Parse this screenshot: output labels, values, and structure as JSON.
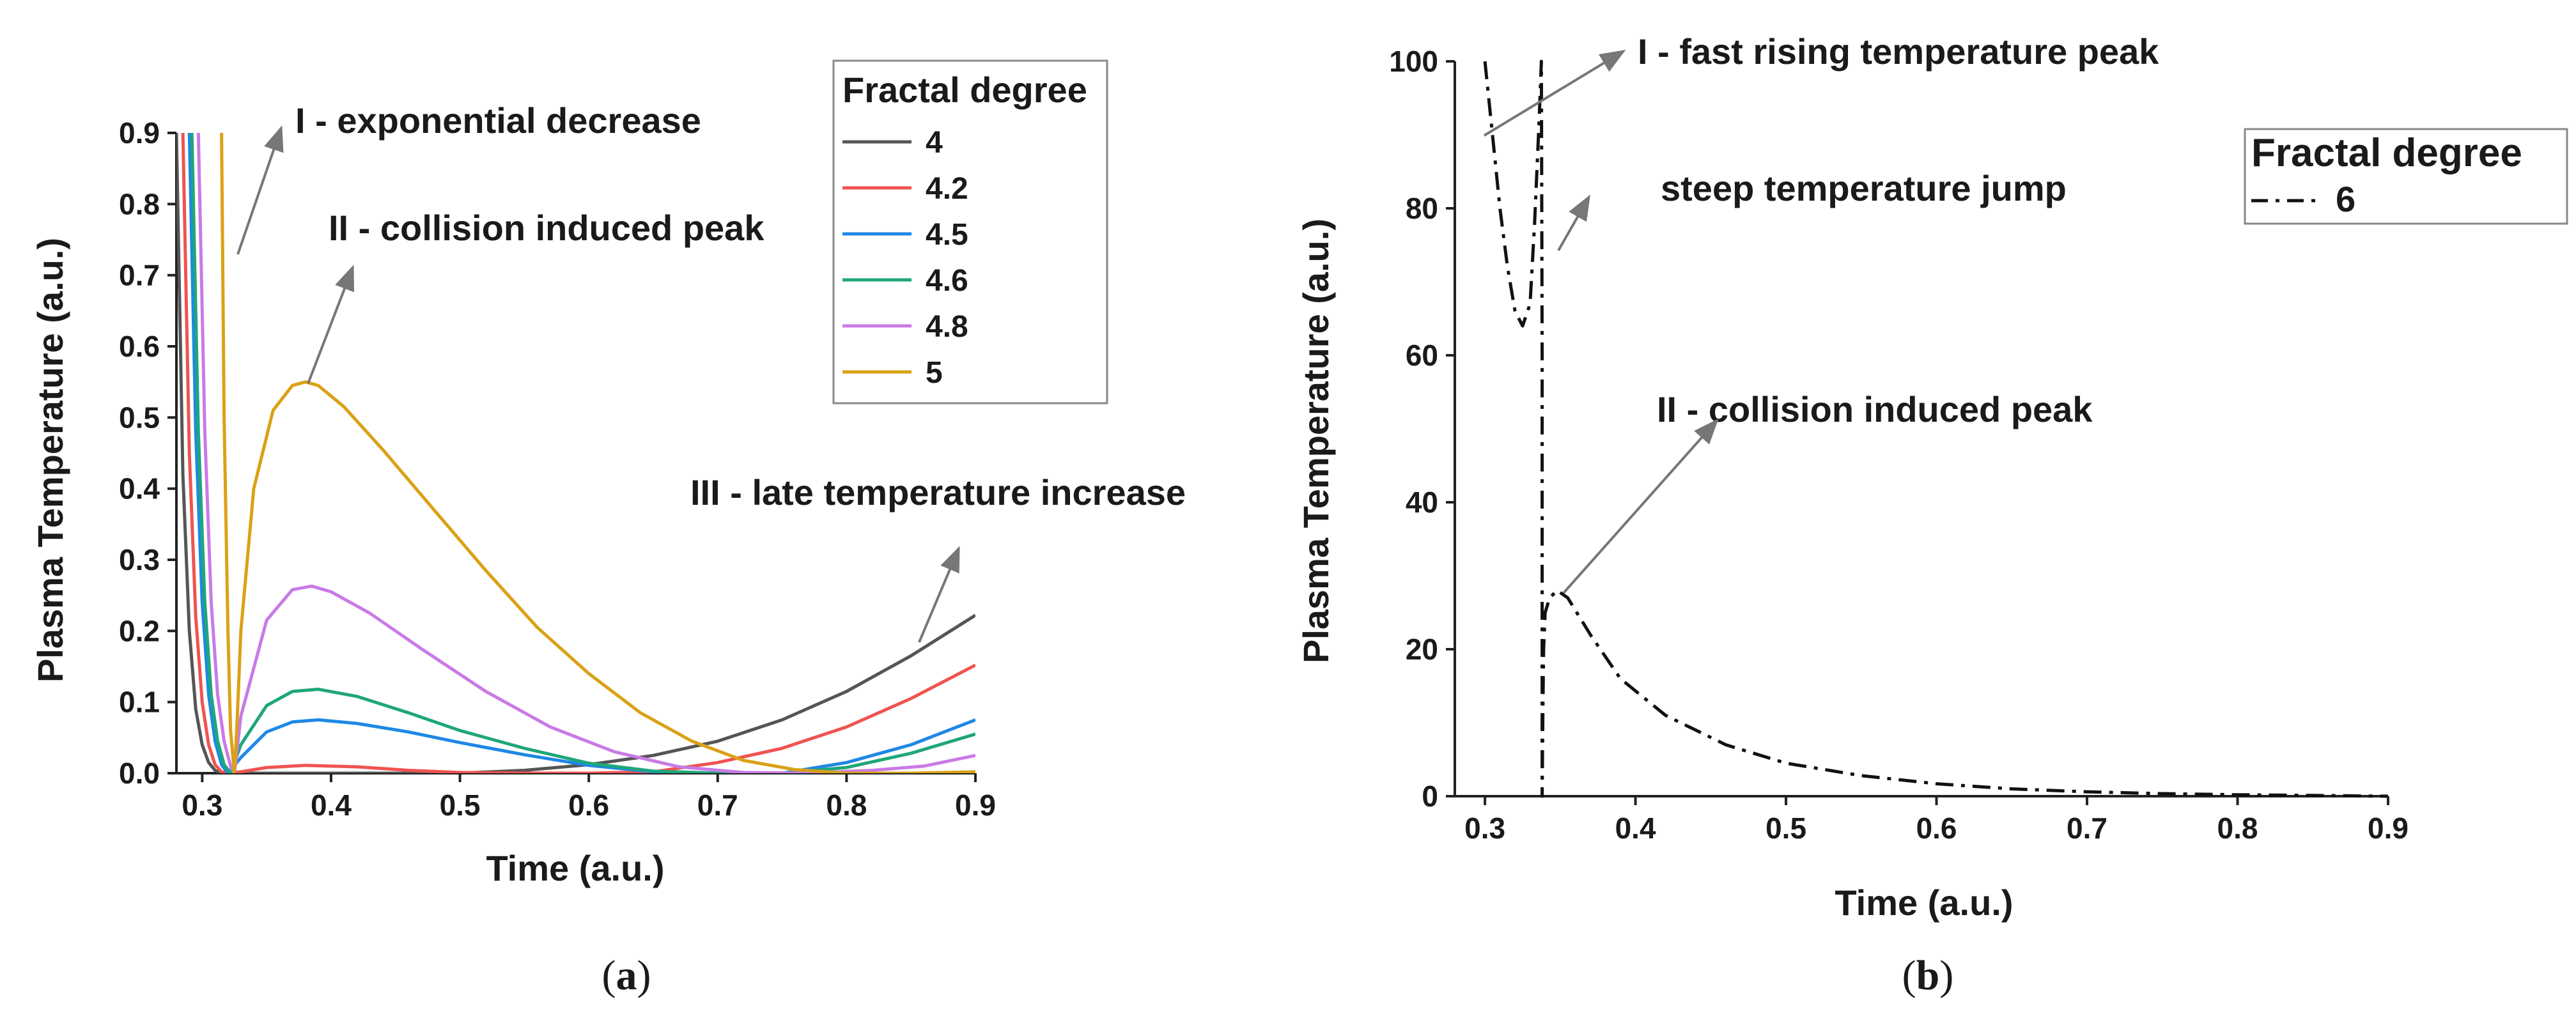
{
  "chart_data": [
    {
      "type": "line",
      "panel_label": "a",
      "xlabel": "Time (a.u.)",
      "ylabel": "Plasma Temperature (a.u.)",
      "xlim": [
        0.28,
        0.9
      ],
      "ylim": [
        0,
        0.9
      ],
      "xticks": [
        {
          "value": 0.3,
          "label": "0.3"
        },
        {
          "value": 0.4,
          "label": "0.4"
        },
        {
          "value": 0.5,
          "label": "0.5"
        },
        {
          "value": 0.6,
          "label": "0.6"
        },
        {
          "value": 0.7,
          "label": "0.7"
        },
        {
          "value": 0.8,
          "label": "0.8"
        },
        {
          "value": 0.9,
          "label": "0.9"
        }
      ],
      "yticks": [
        {
          "value": 0.0,
          "label": "0.0"
        },
        {
          "value": 0.1,
          "label": "0.1"
        },
        {
          "value": 0.2,
          "label": "0.2"
        },
        {
          "value": 0.3,
          "label": "0.3"
        },
        {
          "value": 0.4,
          "label": "0.4"
        },
        {
          "value": 0.5,
          "label": "0.5"
        },
        {
          "value": 0.6,
          "label": "0.6"
        },
        {
          "value": 0.7,
          "label": "0.7"
        },
        {
          "value": 0.8,
          "label": "0.8"
        },
        {
          "value": 0.9,
          "label": "0.9"
        }
      ],
      "legend": {
        "title": "Fractal degree",
        "position": "top-right"
      },
      "series": [
        {
          "name": "4",
          "color": "#555555",
          "x": [
            0.28,
            0.285,
            0.29,
            0.295,
            0.3,
            0.305,
            0.31,
            0.315,
            0.32,
            0.33,
            0.35,
            0.4,
            0.45,
            0.5,
            0.55,
            0.6,
            0.65,
            0.7,
            0.75,
            0.8,
            0.85,
            0.9
          ],
          "y": [
            0.9,
            0.42,
            0.2,
            0.09,
            0.04,
            0.015,
            0.004,
            0.0,
            0.0,
            0.0,
            0.0,
            0.0,
            0.0,
            0.0,
            0.004,
            0.012,
            0.025,
            0.045,
            0.075,
            0.115,
            0.165,
            0.222
          ]
        },
        {
          "name": "4.2",
          "color": "#ef5350",
          "x": [
            0.285,
            0.29,
            0.295,
            0.3,
            0.305,
            0.31,
            0.315,
            0.32,
            0.33,
            0.35,
            0.38,
            0.42,
            0.46,
            0.5,
            0.55,
            0.6,
            0.65,
            0.7,
            0.75,
            0.8,
            0.85,
            0.9
          ],
          "y": [
            0.9,
            0.45,
            0.22,
            0.1,
            0.04,
            0.012,
            0.002,
            0.0,
            0.002,
            0.008,
            0.011,
            0.009,
            0.004,
            0.001,
            0.0,
            0.0,
            0.002,
            0.015,
            0.035,
            0.065,
            0.105,
            0.152
          ]
        },
        {
          "name": "4.5",
          "color": "#1e88e5",
          "x": [
            0.29,
            0.295,
            0.3,
            0.305,
            0.31,
            0.315,
            0.32,
            0.33,
            0.35,
            0.37,
            0.39,
            0.42,
            0.46,
            0.5,
            0.55,
            0.6,
            0.65,
            0.7,
            0.75,
            0.8,
            0.85,
            0.9
          ],
          "y": [
            0.9,
            0.48,
            0.24,
            0.11,
            0.045,
            0.012,
            0.0,
            0.022,
            0.058,
            0.072,
            0.075,
            0.07,
            0.058,
            0.043,
            0.026,
            0.011,
            0.002,
            0.0,
            0.0,
            0.015,
            0.04,
            0.075
          ]
        },
        {
          "name": "4.6",
          "color": "#1fa67a",
          "x": [
            0.292,
            0.297,
            0.302,
            0.307,
            0.312,
            0.317,
            0.322,
            0.33,
            0.35,
            0.37,
            0.39,
            0.42,
            0.46,
            0.5,
            0.55,
            0.6,
            0.65,
            0.7,
            0.75,
            0.8,
            0.85,
            0.9
          ],
          "y": [
            0.9,
            0.48,
            0.24,
            0.11,
            0.045,
            0.012,
            0.0,
            0.04,
            0.095,
            0.115,
            0.118,
            0.108,
            0.085,
            0.06,
            0.035,
            0.014,
            0.003,
            0.0,
            0.0,
            0.008,
            0.028,
            0.055
          ]
        },
        {
          "name": "4.8",
          "color": "#c97ae6",
          "x": [
            0.297,
            0.302,
            0.307,
            0.312,
            0.317,
            0.322,
            0.325,
            0.33,
            0.35,
            0.37,
            0.385,
            0.4,
            0.43,
            0.47,
            0.52,
            0.57,
            0.62,
            0.67,
            0.72,
            0.77,
            0.82,
            0.86,
            0.9
          ],
          "y": [
            0.9,
            0.48,
            0.24,
            0.11,
            0.045,
            0.01,
            0.0,
            0.08,
            0.215,
            0.258,
            0.263,
            0.255,
            0.225,
            0.175,
            0.115,
            0.065,
            0.03,
            0.009,
            0.001,
            0.0,
            0.004,
            0.01,
            0.025
          ]
        },
        {
          "name": "5",
          "color": "#daa116",
          "x": [
            0.315,
            0.317,
            0.32,
            0.322,
            0.325,
            0.327,
            0.33,
            0.34,
            0.355,
            0.37,
            0.38,
            0.39,
            0.41,
            0.44,
            0.48,
            0.52,
            0.56,
            0.6,
            0.64,
            0.68,
            0.72,
            0.76,
            0.8,
            0.85,
            0.9
          ],
          "y": [
            0.9,
            0.5,
            0.2,
            0.06,
            0.0,
            0.07,
            0.2,
            0.4,
            0.51,
            0.545,
            0.55,
            0.545,
            0.515,
            0.455,
            0.37,
            0.285,
            0.205,
            0.14,
            0.085,
            0.045,
            0.018,
            0.005,
            0.0,
            0.0,
            0.002
          ]
        }
      ],
      "annotations": [
        {
          "text": "I - exponential decrease"
        },
        {
          "text": "II - collision induced peak"
        },
        {
          "text": "III - late temperature increase"
        }
      ]
    },
    {
      "type": "line",
      "panel_label": "b",
      "xlabel": "Time (a.u.)",
      "ylabel": "Plasma Temperature (a.u.)",
      "xlim": [
        0.28,
        0.9
      ],
      "ylim": [
        0,
        100
      ],
      "xticks": [
        {
          "value": 0.3,
          "label": "0.3"
        },
        {
          "value": 0.4,
          "label": "0.4"
        },
        {
          "value": 0.5,
          "label": "0.5"
        },
        {
          "value": 0.6,
          "label": "0.6"
        },
        {
          "value": 0.7,
          "label": "0.7"
        },
        {
          "value": 0.8,
          "label": "0.8"
        },
        {
          "value": 0.9,
          "label": "0.9"
        }
      ],
      "yticks": [
        {
          "value": 0,
          "label": "0"
        },
        {
          "value": 20,
          "label": "20"
        },
        {
          "value": 40,
          "label": "40"
        },
        {
          "value": 60,
          "label": "60"
        },
        {
          "value": 80,
          "label": "80"
        },
        {
          "value": 100,
          "label": "100"
        }
      ],
      "legend": {
        "title": "Fractal degree",
        "position": "top-right"
      },
      "series": [
        {
          "name": "6",
          "color": "#111111",
          "style": "dash-dot",
          "x": [
            0.3,
            0.305,
            0.31,
            0.315,
            0.32,
            0.325,
            0.33,
            0.333,
            0.336,
            0.3375,
            0.338,
            0.338,
            0.3385,
            0.339,
            0.34,
            0.343,
            0.348,
            0.355,
            0.37,
            0.39,
            0.42,
            0.46,
            0.5,
            0.55,
            0.6,
            0.65,
            0.7,
            0.75,
            0.8,
            0.85,
            0.9
          ],
          "y": [
            100,
            90,
            80,
            72,
            66,
            64,
            67,
            78,
            92,
            100,
            60,
            0,
            12,
            20,
            25,
            27,
            28,
            27,
            22,
            16,
            11,
            7,
            4.5,
            2.8,
            1.7,
            1.0,
            0.6,
            0.35,
            0.2,
            0.1,
            0.0
          ]
        }
      ],
      "annotations": [
        {
          "text": "I - fast rising temperature peak"
        },
        {
          "text": "steep temperature jump"
        },
        {
          "text": "II - collision induced peak"
        }
      ]
    }
  ]
}
